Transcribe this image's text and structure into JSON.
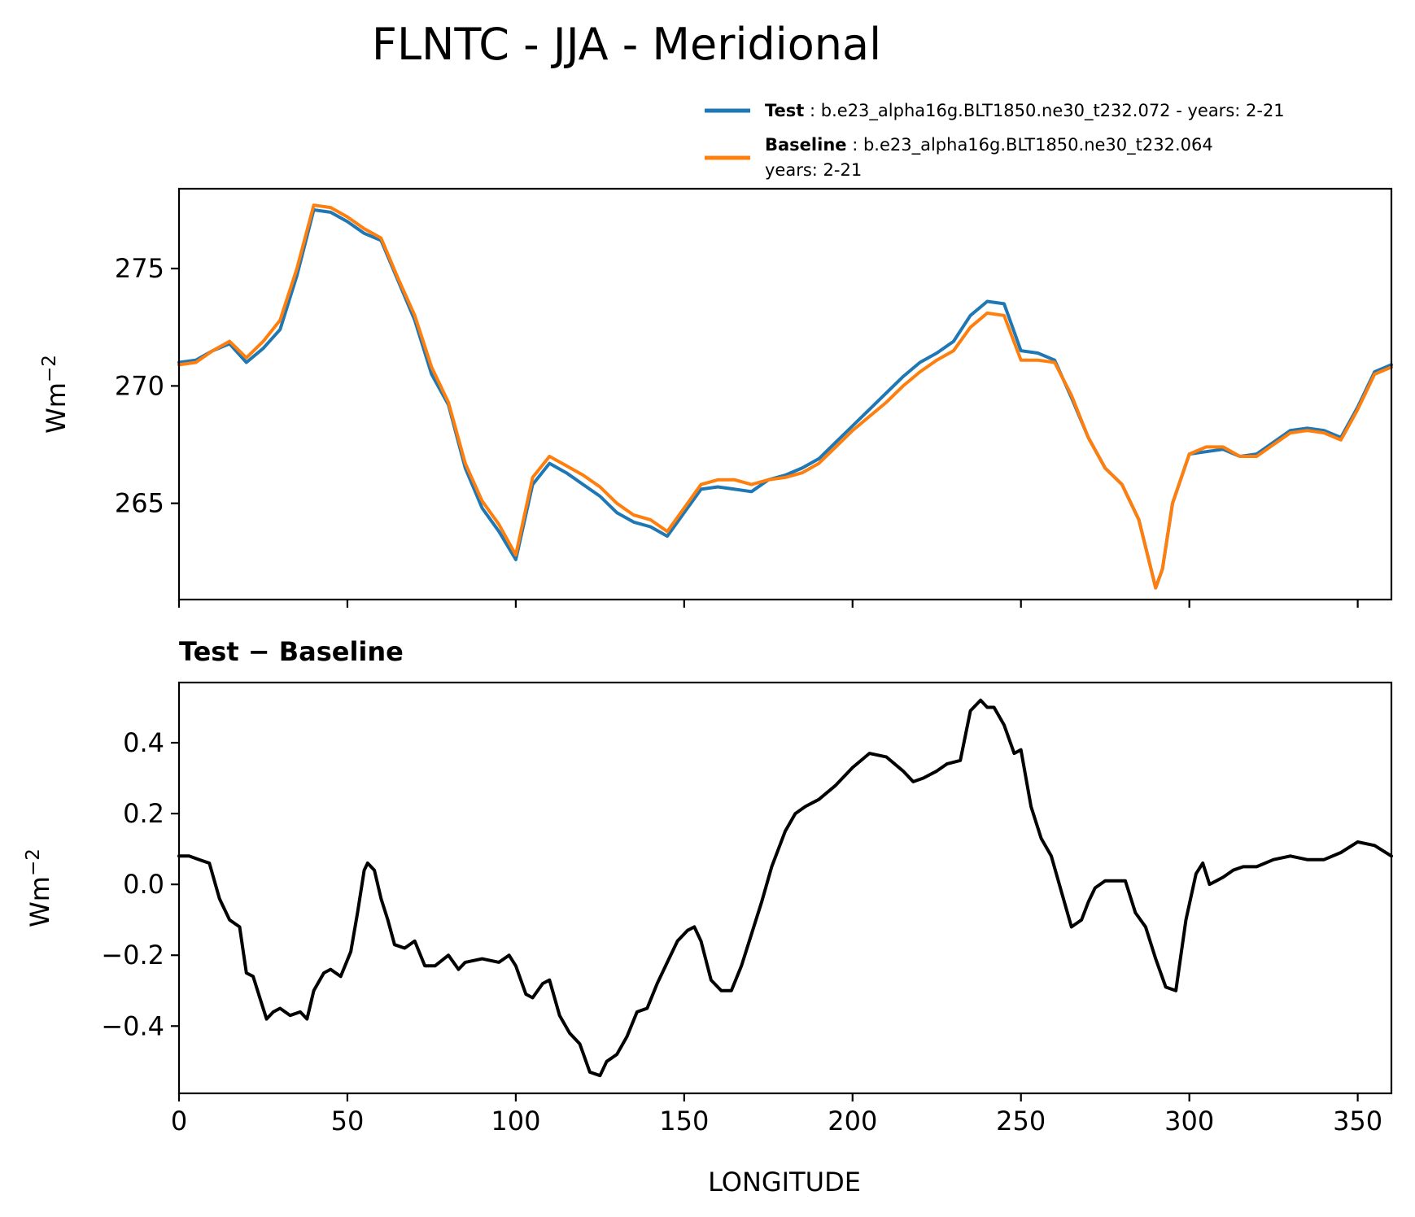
{
  "chart_data": [
    {
      "type": "line",
      "title": "FLNTC - JJA - Meridional",
      "xlabel": "",
      "ylabel": "Wm",
      "ylabel_sup": "−2",
      "xlim": [
        0,
        360
      ],
      "ylim": [
        260.9,
        278.4
      ],
      "x_tick_values": [
        0,
        50,
        100,
        150,
        200,
        250,
        300,
        350
      ],
      "y_ticks": [
        "265",
        "270",
        "275"
      ],
      "y_tick_values": [
        265,
        270,
        275
      ],
      "grid": false,
      "legend_position": "upper-right, above axes",
      "x": [
        0,
        5,
        10,
        15,
        20,
        25,
        30,
        35,
        40,
        45,
        50,
        55,
        60,
        65,
        70,
        75,
        80,
        85,
        90,
        95,
        100,
        105,
        110,
        115,
        120,
        125,
        130,
        135,
        140,
        145,
        150,
        155,
        160,
        165,
        170,
        175,
        180,
        185,
        190,
        195,
        200,
        205,
        210,
        215,
        220,
        225,
        230,
        235,
        240,
        245,
        250,
        255,
        260,
        265,
        270,
        275,
        280,
        285,
        290,
        292,
        295,
        300,
        305,
        310,
        315,
        320,
        325,
        330,
        335,
        340,
        345,
        350,
        355,
        360
      ],
      "series": [
        {
          "name": "Test",
          "legend_label": "Test",
          "legend_detail": ": b.e23_alpha16g.BLT1850.ne30_t232.072 - years: 2-21",
          "color": "#1f77b4",
          "values": [
            271.0,
            271.1,
            271.5,
            271.8,
            271.0,
            271.6,
            272.4,
            274.7,
            277.5,
            277.4,
            277.0,
            276.5,
            276.2,
            274.5,
            272.8,
            270.5,
            269.2,
            266.5,
            264.8,
            263.8,
            262.6,
            265.8,
            266.7,
            266.3,
            265.8,
            265.3,
            264.6,
            264.2,
            264.0,
            263.6,
            264.6,
            265.6,
            265.7,
            265.6,
            265.5,
            266.0,
            266.2,
            266.5,
            266.9,
            267.6,
            268.3,
            269.0,
            269.7,
            270.4,
            271.0,
            271.4,
            271.9,
            273.0,
            273.6,
            273.5,
            271.5,
            271.4,
            271.1,
            269.5,
            267.8,
            266.5,
            265.8,
            264.3,
            261.4,
            262.2,
            265.0,
            267.1,
            267.2,
            267.3,
            267.0,
            267.1,
            267.6,
            268.1,
            268.2,
            268.1,
            267.8,
            269.1,
            270.6,
            270.9
          ]
        },
        {
          "name": "Baseline",
          "legend_label": "Baseline",
          "legend_detail": ": b.e23_alpha16g.BLT1850.ne30_t232.064",
          "legend_detail2": "years: 2-21",
          "color": "#ff7f0e",
          "values": [
            270.9,
            271.0,
            271.5,
            271.9,
            271.2,
            271.9,
            272.8,
            275.0,
            277.7,
            277.6,
            277.2,
            276.7,
            276.3,
            274.6,
            273.0,
            270.8,
            269.3,
            266.7,
            265.1,
            264.1,
            262.8,
            266.1,
            267.0,
            266.6,
            266.2,
            265.7,
            265.0,
            264.5,
            264.3,
            263.8,
            264.8,
            265.8,
            266.0,
            266.0,
            265.8,
            266.0,
            266.1,
            266.3,
            266.7,
            267.4,
            268.1,
            268.7,
            269.3,
            270.0,
            270.6,
            271.1,
            271.5,
            272.5,
            273.1,
            273.0,
            271.1,
            271.1,
            271.0,
            269.6,
            267.8,
            266.5,
            265.8,
            264.3,
            261.4,
            262.2,
            265.0,
            267.1,
            267.4,
            267.4,
            267.0,
            267.0,
            267.5,
            268.0,
            268.1,
            268.0,
            267.7,
            269.0,
            270.5,
            270.8
          ]
        }
      ]
    },
    {
      "type": "line",
      "title": "Test − Baseline",
      "xlabel": "LONGITUDE",
      "ylabel": "Wm",
      "ylabel_sup": "−2",
      "xlim": [
        0,
        360
      ],
      "ylim": [
        -0.59,
        0.57
      ],
      "x_ticks": [
        "0",
        "50",
        "100",
        "150",
        "200",
        "250",
        "300",
        "350"
      ],
      "x_tick_values": [
        0,
        50,
        100,
        150,
        200,
        250,
        300,
        350
      ],
      "y_ticks": [
        "−0.4",
        "−0.2",
        "0.0",
        "0.2",
        "0.4"
      ],
      "y_tick_values": [
        -0.4,
        -0.2,
        0.0,
        0.2,
        0.4
      ],
      "grid": false,
      "x": [
        0,
        3,
        6,
        9,
        12,
        15,
        18,
        20,
        22,
        24,
        26,
        28,
        30,
        33,
        36,
        38,
        40,
        43,
        45,
        48,
        51,
        53,
        55,
        56,
        58,
        60,
        62,
        64,
        67,
        70,
        73,
        76,
        80,
        83,
        85,
        90,
        95,
        98,
        100,
        103,
        105,
        108,
        110,
        113,
        116,
        119,
        122,
        125,
        127,
        130,
        133,
        136,
        139,
        142,
        145,
        148,
        151,
        153,
        155,
        158,
        161,
        164,
        167,
        170,
        173,
        176,
        180,
        183,
        186,
        190,
        195,
        200,
        205,
        210,
        215,
        218,
        221,
        225,
        228,
        232,
        235,
        238,
        240,
        242,
        245,
        248,
        250,
        253,
        256,
        259,
        262,
        265,
        268,
        270,
        272,
        275,
        278,
        281,
        284,
        287,
        290,
        293,
        296,
        299,
        302,
        304,
        306,
        308,
        310,
        313,
        316,
        320,
        325,
        330,
        335,
        340,
        345,
        350,
        355,
        360
      ],
      "series": [
        {
          "name": "",
          "color": "#000000",
          "values": [
            0.08,
            0.08,
            0.07,
            0.06,
            -0.04,
            -0.1,
            -0.12,
            -0.25,
            -0.26,
            -0.32,
            -0.38,
            -0.36,
            -0.35,
            -0.37,
            -0.36,
            -0.38,
            -0.3,
            -0.25,
            -0.24,
            -0.26,
            -0.19,
            -0.08,
            0.04,
            0.06,
            0.04,
            -0.04,
            -0.1,
            -0.17,
            -0.18,
            -0.16,
            -0.23,
            -0.23,
            -0.2,
            -0.24,
            -0.22,
            -0.21,
            -0.22,
            -0.2,
            -0.23,
            -0.31,
            -0.32,
            -0.28,
            -0.27,
            -0.37,
            -0.42,
            -0.45,
            -0.53,
            -0.54,
            -0.5,
            -0.48,
            -0.43,
            -0.36,
            -0.35,
            -0.28,
            -0.22,
            -0.16,
            -0.13,
            -0.12,
            -0.16,
            -0.27,
            -0.3,
            -0.3,
            -0.23,
            -0.14,
            -0.05,
            0.05,
            0.15,
            0.2,
            0.22,
            0.24,
            0.28,
            0.33,
            0.37,
            0.36,
            0.32,
            0.29,
            0.3,
            0.32,
            0.34,
            0.35,
            0.49,
            0.52,
            0.5,
            0.5,
            0.45,
            0.37,
            0.38,
            0.22,
            0.13,
            0.08,
            -0.02,
            -0.12,
            -0.1,
            -0.05,
            -0.01,
            0.01,
            0.01,
            0.01,
            -0.08,
            -0.12,
            -0.21,
            -0.29,
            -0.3,
            -0.1,
            0.03,
            0.06,
            0.0,
            0.01,
            0.02,
            0.04,
            0.05,
            0.05,
            0.07,
            0.08,
            0.07,
            0.07,
            0.09,
            0.12,
            0.11,
            0.08
          ]
        }
      ]
    }
  ]
}
